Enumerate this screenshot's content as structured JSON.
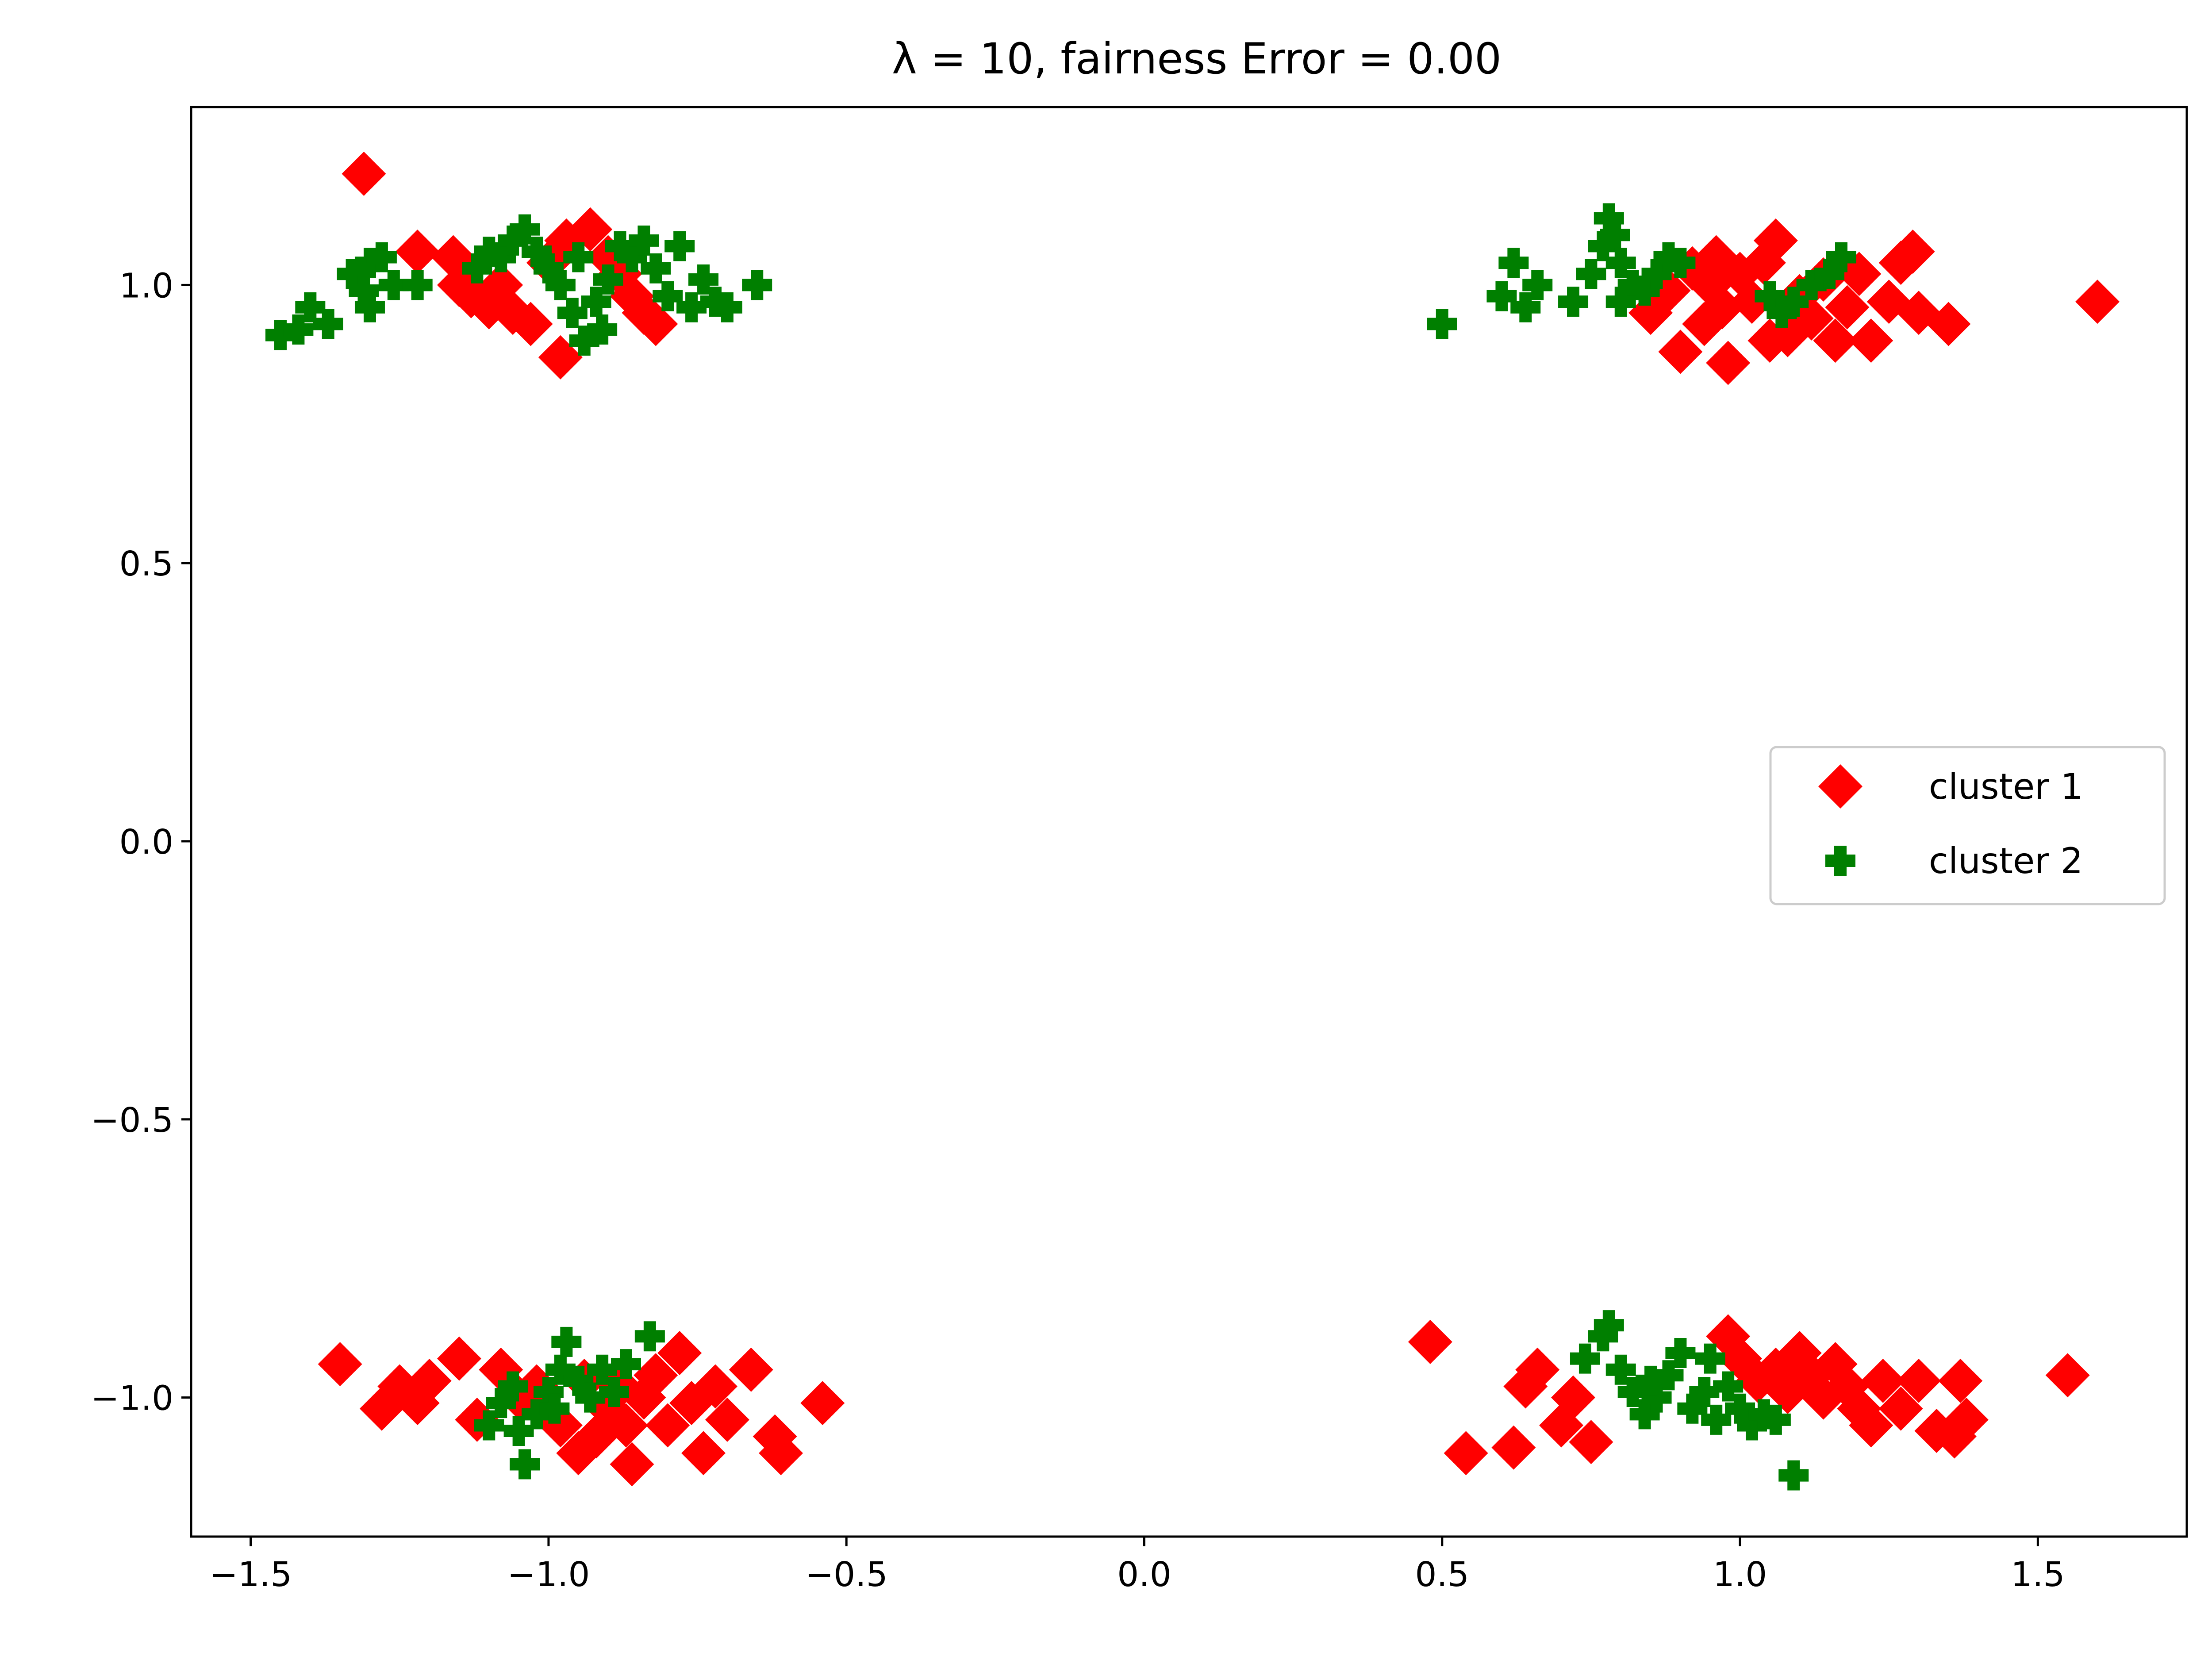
{
  "chart_data": {
    "type": "scatter",
    "title": "λ = 10, fairness Error =  0.00",
    "xlabel": "",
    "ylabel": "",
    "xlim": [
      -1.6,
      1.75
    ],
    "ylim": [
      -1.25,
      1.32
    ],
    "xticks": [
      -1.5,
      -1.0,
      -0.5,
      0.0,
      0.5,
      1.0,
      1.5
    ],
    "xtick_labels": [
      "−1.5",
      "−1.0",
      "−0.5",
      "0.0",
      "0.5",
      "1.0",
      "1.5"
    ],
    "yticks": [
      -1.0,
      -0.5,
      0.0,
      0.5,
      1.0
    ],
    "ytick_labels": [
      "−1.0",
      "−0.5",
      "0.0",
      "0.5",
      "1.0"
    ],
    "grid": false,
    "legend": {
      "position": "right",
      "entries": [
        "cluster 1",
        "cluster 2"
      ]
    },
    "series": [
      {
        "name": "cluster 1",
        "marker": "diamond",
        "color": "#ff0000",
        "points": [
          [
            -1.31,
            1.2
          ],
          [
            -1.22,
            1.06
          ],
          [
            -1.16,
            1.05
          ],
          [
            -1.15,
            1.0
          ],
          [
            -1.13,
            0.98
          ],
          [
            -1.1,
            0.96
          ],
          [
            -1.06,
            0.95
          ],
          [
            -1.03,
            0.93
          ],
          [
            -0.98,
            0.87
          ],
          [
            -0.97,
            1.08
          ],
          [
            -0.93,
            1.1
          ],
          [
            -0.9,
            1.05
          ],
          [
            -0.88,
            1.02
          ],
          [
            -0.86,
            0.98
          ],
          [
            -0.84,
            0.95
          ],
          [
            -0.82,
            0.93
          ],
          [
            -1.08,
            1.0
          ],
          [
            -1.0,
            1.04
          ],
          [
            0.85,
            0.95
          ],
          [
            0.88,
            0.99
          ],
          [
            0.9,
            0.88
          ],
          [
            0.92,
            1.03
          ],
          [
            0.94,
            0.93
          ],
          [
            0.96,
            1.05
          ],
          [
            0.98,
            0.86
          ],
          [
            1.0,
            1.02
          ],
          [
            1.02,
            0.97
          ],
          [
            1.04,
            1.04
          ],
          [
            1.06,
            1.08
          ],
          [
            1.08,
            0.91
          ],
          [
            1.1,
            0.98
          ],
          [
            1.12,
            0.94
          ],
          [
            1.14,
            1.01
          ],
          [
            1.16,
            0.9
          ],
          [
            1.18,
            0.96
          ],
          [
            1.2,
            1.02
          ],
          [
            1.22,
            0.9
          ],
          [
            1.25,
            0.97
          ],
          [
            1.27,
            1.04
          ],
          [
            1.29,
            1.06
          ],
          [
            1.3,
            0.95
          ],
          [
            1.35,
            0.93
          ],
          [
            1.6,
            0.97
          ],
          [
            0.97,
            0.96
          ],
          [
            1.05,
            0.9
          ],
          [
            0.95,
            1.0
          ],
          [
            -1.35,
            -0.94
          ],
          [
            -1.28,
            -1.02
          ],
          [
            -1.25,
            -0.98
          ],
          [
            -1.22,
            -1.01
          ],
          [
            -1.2,
            -0.97
          ],
          [
            -1.15,
            -0.93
          ],
          [
            -1.12,
            -1.04
          ],
          [
            -1.08,
            -0.95
          ],
          [
            -1.05,
            -1.0
          ],
          [
            -1.02,
            -0.98
          ],
          [
            -0.98,
            -1.05
          ],
          [
            -0.95,
            -1.1
          ],
          [
            -0.92,
            -1.07
          ],
          [
            -0.9,
            -1.02
          ],
          [
            -0.88,
            -0.98
          ],
          [
            -0.86,
            -1.12
          ],
          [
            -0.84,
            -1.0
          ],
          [
            -0.82,
            -0.96
          ],
          [
            -0.8,
            -1.05
          ],
          [
            -0.78,
            -0.92
          ],
          [
            -0.76,
            -1.01
          ],
          [
            -0.74,
            -1.1
          ],
          [
            -0.72,
            -0.98
          ],
          [
            -0.7,
            -1.04
          ],
          [
            -0.66,
            -0.95
          ],
          [
            -0.62,
            -1.07
          ],
          [
            -0.61,
            -1.1
          ],
          [
            -0.54,
            -1.01
          ],
          [
            -0.94,
            -0.97
          ],
          [
            -0.87,
            -1.05
          ],
          [
            0.48,
            -0.9
          ],
          [
            0.54,
            -1.1
          ],
          [
            0.62,
            -1.09
          ],
          [
            0.64,
            -0.98
          ],
          [
            0.66,
            -0.95
          ],
          [
            0.7,
            -1.05
          ],
          [
            0.72,
            -1.0
          ],
          [
            0.75,
            -1.08
          ],
          [
            0.98,
            -0.89
          ],
          [
            1.0,
            -0.93
          ],
          [
            1.03,
            -0.97
          ],
          [
            1.06,
            -0.95
          ],
          [
            1.08,
            -0.99
          ],
          [
            1.1,
            -0.92
          ],
          [
            1.12,
            -0.96
          ],
          [
            1.14,
            -1.0
          ],
          [
            1.16,
            -0.94
          ],
          [
            1.18,
            -0.98
          ],
          [
            1.2,
            -1.02
          ],
          [
            1.24,
            -0.97
          ],
          [
            1.27,
            -1.02
          ],
          [
            1.3,
            -0.97
          ],
          [
            1.33,
            -1.06
          ],
          [
            1.36,
            -1.07
          ],
          [
            1.37,
            -0.97
          ],
          [
            1.38,
            -1.04
          ],
          [
            1.55,
            -0.96
          ],
          [
            1.22,
            -1.05
          ]
        ]
      },
      {
        "name": "cluster 2",
        "marker": "plus",
        "color": "#007f00",
        "points": [
          [
            -1.45,
            0.91
          ],
          [
            -1.42,
            0.92
          ],
          [
            -1.4,
            0.96
          ],
          [
            -1.37,
            0.93
          ],
          [
            -1.33,
            1.02
          ],
          [
            -1.31,
            0.99
          ],
          [
            -1.3,
            1.04
          ],
          [
            -1.28,
            1.05
          ],
          [
            -1.26,
            1.0
          ],
          [
            -1.22,
            1.0
          ],
          [
            -1.12,
            1.03
          ],
          [
            -1.1,
            1.06
          ],
          [
            -1.08,
            1.05
          ],
          [
            -1.06,
            1.08
          ],
          [
            -1.04,
            1.1
          ],
          [
            -1.02,
            1.06
          ],
          [
            -1.0,
            1.03
          ],
          [
            -0.98,
            1.0
          ],
          [
            -0.96,
            0.95
          ],
          [
            -0.94,
            0.9
          ],
          [
            -0.92,
            0.97
          ],
          [
            -0.9,
            1.01
          ],
          [
            -0.88,
            1.07
          ],
          [
            -0.86,
            1.05
          ],
          [
            -0.84,
            1.08
          ],
          [
            -0.82,
            1.03
          ],
          [
            -0.8,
            0.98
          ],
          [
            -0.78,
            1.07
          ],
          [
            -0.76,
            0.96
          ],
          [
            -0.74,
            1.01
          ],
          [
            -0.72,
            0.97
          ],
          [
            -0.7,
            0.96
          ],
          [
            -0.65,
            1.0
          ],
          [
            -0.95,
            1.05
          ],
          [
            -1.3,
            0.96
          ],
          [
            -0.91,
            0.92
          ],
          [
            0.5,
            0.93
          ],
          [
            0.6,
            0.98
          ],
          [
            0.62,
            1.04
          ],
          [
            0.64,
            0.96
          ],
          [
            0.66,
            1.0
          ],
          [
            0.72,
            0.97
          ],
          [
            0.75,
            1.02
          ],
          [
            0.77,
            1.07
          ],
          [
            0.78,
            1.12
          ],
          [
            0.79,
            1.09
          ],
          [
            0.8,
            1.04
          ],
          [
            0.82,
            1.0
          ],
          [
            0.84,
            0.99
          ],
          [
            0.86,
            1.02
          ],
          [
            0.88,
            1.05
          ],
          [
            0.9,
            1.04
          ],
          [
            1.05,
            0.98
          ],
          [
            1.07,
            0.95
          ],
          [
            1.09,
            0.97
          ],
          [
            1.12,
            1.0
          ],
          [
            1.15,
            1.02
          ],
          [
            1.17,
            1.05
          ],
          [
            0.8,
            0.97
          ],
          [
            -1.1,
            -1.05
          ],
          [
            -1.08,
            -1.01
          ],
          [
            -1.06,
            -0.98
          ],
          [
            -1.04,
            -1.12
          ],
          [
            -1.02,
            -1.03
          ],
          [
            -1.0,
            -0.99
          ],
          [
            -0.98,
            -0.95
          ],
          [
            -0.97,
            -0.9
          ],
          [
            -0.95,
            -0.97
          ],
          [
            -0.93,
            -1.0
          ],
          [
            -0.91,
            -0.95
          ],
          [
            -0.89,
            -0.99
          ],
          [
            -0.87,
            -0.94
          ],
          [
            -0.83,
            -0.89
          ],
          [
            -1.05,
            -1.06
          ],
          [
            -0.99,
            -1.02
          ],
          [
            0.74,
            -0.93
          ],
          [
            0.77,
            -0.89
          ],
          [
            0.78,
            -0.87
          ],
          [
            0.8,
            -0.95
          ],
          [
            0.82,
            -0.99
          ],
          [
            0.84,
            -1.03
          ],
          [
            0.86,
            -1.0
          ],
          [
            0.88,
            -0.96
          ],
          [
            0.9,
            -0.92
          ],
          [
            0.92,
            -1.02
          ],
          [
            0.94,
            -0.99
          ],
          [
            0.96,
            -1.04
          ],
          [
            0.98,
            -0.98
          ],
          [
            1.0,
            -1.02
          ],
          [
            1.02,
            -1.05
          ],
          [
            1.04,
            -1.03
          ],
          [
            1.06,
            -1.04
          ],
          [
            1.09,
            -1.14
          ],
          [
            0.85,
            -0.97
          ],
          [
            0.95,
            -0.93
          ]
        ]
      }
    ]
  }
}
